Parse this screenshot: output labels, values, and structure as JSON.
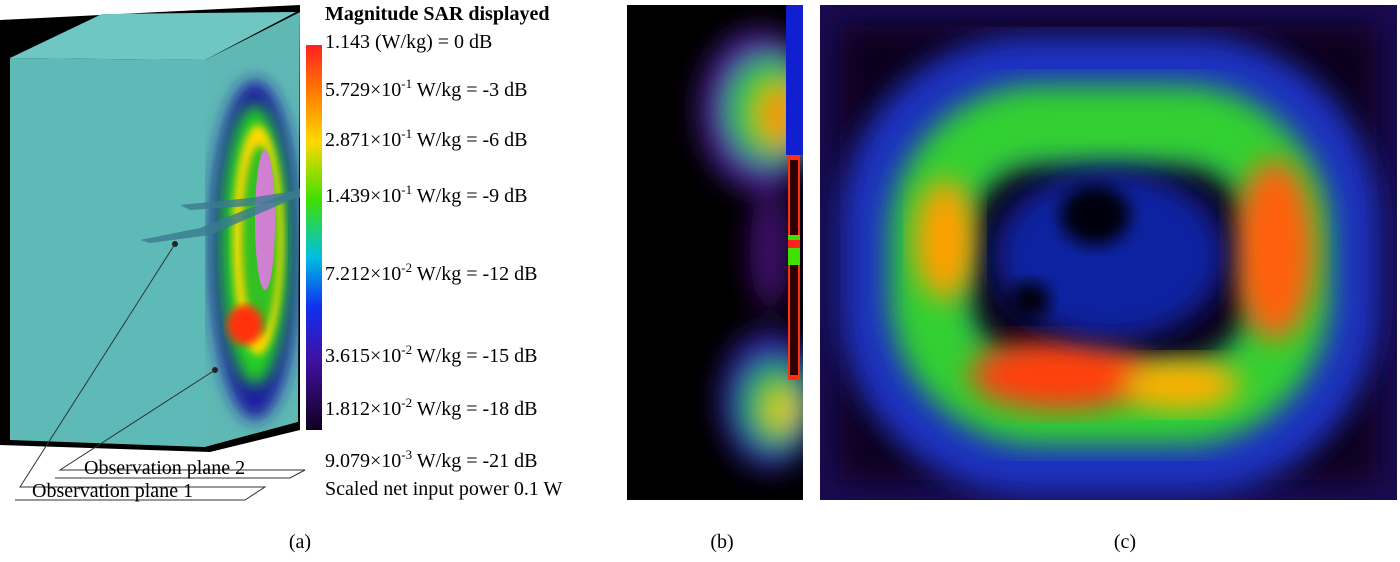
{
  "panel_a": {
    "labels": [
      "Observation plane 2",
      "Observation plane 1"
    ],
    "legend": {
      "title": "Magnitude SAR displayed",
      "entries": [
        {
          "text": "1.143 (W/kg) = 0 dB"
        },
        {
          "base": "5.729×10",
          "exp": "-1",
          "rest": " W/kg = -3 dB"
        },
        {
          "base": "2.871×10",
          "exp": "-1",
          "rest": " W/kg = -6 dB"
        },
        {
          "base": "1.439×10",
          "exp": "-1",
          "rest": " W/kg = -9 dB"
        },
        {
          "base": "7.212×10",
          "exp": "-2",
          "rest": " W/kg = -12 dB"
        },
        {
          "base": "3.615×10",
          "exp": "-2",
          "rest": " W/kg = -15 dB"
        },
        {
          "base": "1.812×10",
          "exp": "-2",
          "rest": " W/kg = -18 dB"
        },
        {
          "base": "9.079×10",
          "exp": "-3",
          "rest": " W/kg = -21 dB"
        }
      ],
      "footer": "Scaled net input power 0.1 W"
    }
  },
  "captions": [
    "(a)",
    "(b)",
    "(c)"
  ]
}
